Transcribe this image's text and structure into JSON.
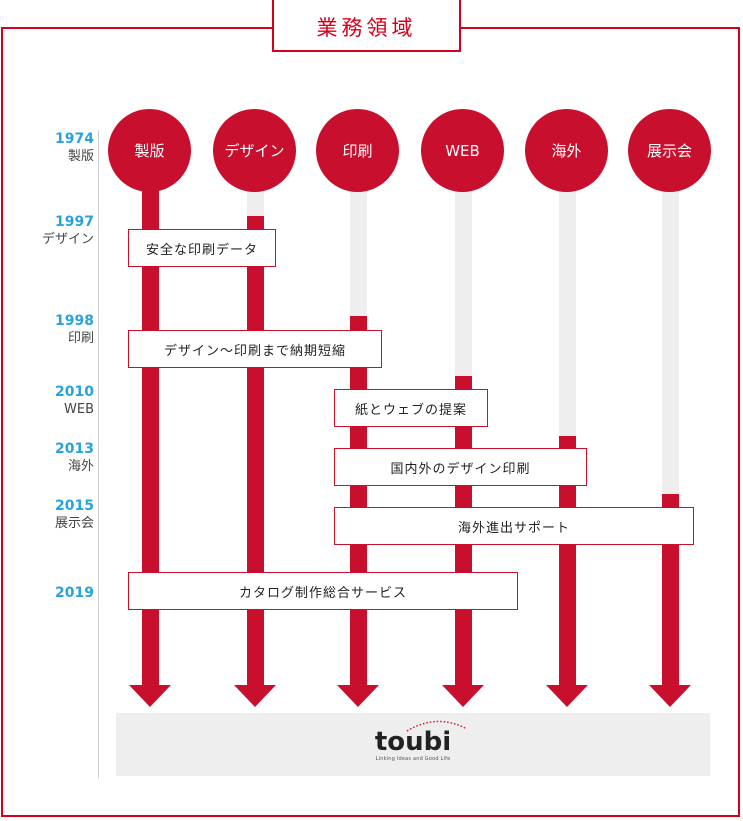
{
  "header": {
    "title": "業務領域"
  },
  "columns": [
    {
      "id": "seihan",
      "label": "製版"
    },
    {
      "id": "design",
      "label": "デザイン"
    },
    {
      "id": "print",
      "label": "印刷"
    },
    {
      "id": "web",
      "label": "WEB"
    },
    {
      "id": "overseas",
      "label": "海外"
    },
    {
      "id": "exhibition",
      "label": "展示会"
    }
  ],
  "timeline": [
    {
      "year": "1974",
      "label": "製版"
    },
    {
      "year": "1997",
      "label": "デザイン"
    },
    {
      "year": "1998",
      "label": "印刷"
    },
    {
      "year": "2010",
      "label": "WEB"
    },
    {
      "year": "2013",
      "label": "海外"
    },
    {
      "year": "2015",
      "label": "展示会"
    },
    {
      "year": "2019",
      "label": ""
    }
  ],
  "events": [
    {
      "text": "安全な印刷データ"
    },
    {
      "text": "デザイン〜印刷まで納期短縮"
    },
    {
      "text": "紙とウェブの提案"
    },
    {
      "text": "国内外のデザイン印刷"
    },
    {
      "text": "海外進出サポート"
    },
    {
      "text": "カタログ制作総合サービス"
    }
  ],
  "footer": {
    "logo_text": "toubi",
    "tagline": "Linking Ideas and Good Life"
  },
  "colors": {
    "accent": "#c8102e",
    "frame": "#d7001c",
    "year": "#29a3dc",
    "track": "#eeeeee"
  }
}
